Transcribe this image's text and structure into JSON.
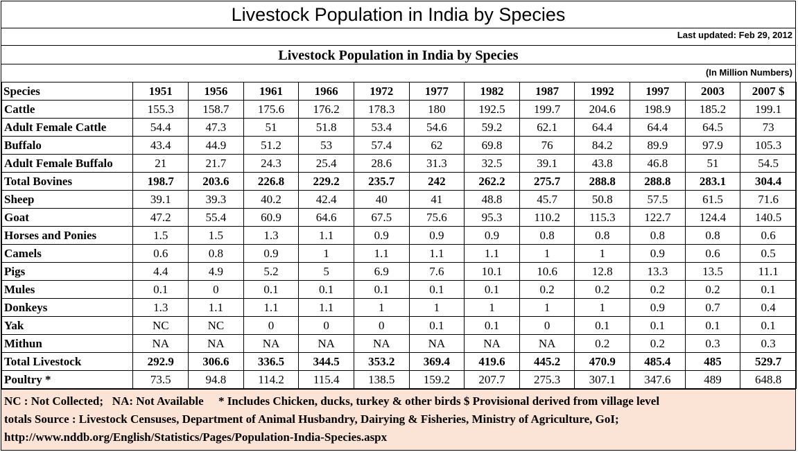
{
  "title": "Livestock Population in India by Species",
  "last_updated": "Last updated: Feb 29, 2012",
  "table_title": "Livestock Population in India by Species",
  "units": "(In Million Numbers)",
  "columns": [
    "Species",
    "1951",
    "1956",
    "1961",
    "1966",
    "1972",
    "1977",
    "1982",
    "1987",
    "1992",
    "1997",
    "2003",
    "2007 $"
  ],
  "rows": [
    {
      "species": "Cattle",
      "bold": false,
      "values": [
        "155.3",
        "158.7",
        "175.6",
        "176.2",
        "178.3",
        "180",
        "192.5",
        "199.7",
        "204.6",
        "198.9",
        "185.2",
        "199.1"
      ]
    },
    {
      "species": "Adult Female Cattle",
      "bold": false,
      "values": [
        "54.4",
        "47.3",
        "51",
        "51.8",
        "53.4",
        "54.6",
        "59.2",
        "62.1",
        "64.4",
        "64.4",
        "64.5",
        "73"
      ]
    },
    {
      "species": "Buffalo",
      "bold": false,
      "values": [
        "43.4",
        "44.9",
        "51.2",
        "53",
        "57.4",
        "62",
        "69.8",
        "76",
        "84.2",
        "89.9",
        "97.9",
        "105.3"
      ]
    },
    {
      "species": "Adult Female Buffalo",
      "bold": false,
      "values": [
        "21",
        "21.7",
        "24.3",
        "25.4",
        "28.6",
        "31.3",
        "32.5",
        "39.1",
        "43.8",
        "46.8",
        "51",
        "54.5"
      ]
    },
    {
      "species": "Total Bovines",
      "bold": true,
      "values": [
        "198.7",
        "203.6",
        "226.8",
        "229.2",
        "235.7",
        "242",
        "262.2",
        "275.7",
        "288.8",
        "288.8",
        "283.1",
        "304.4"
      ]
    },
    {
      "species": "Sheep",
      "bold": false,
      "values": [
        "39.1",
        "39.3",
        "40.2",
        "42.4",
        "40",
        "41",
        "48.8",
        "45.7",
        "50.8",
        "57.5",
        "61.5",
        "71.6"
      ]
    },
    {
      "species": "Goat",
      "bold": false,
      "values": [
        "47.2",
        "55.4",
        "60.9",
        "64.6",
        "67.5",
        "75.6",
        "95.3",
        "110.2",
        "115.3",
        "122.7",
        "124.4",
        "140.5"
      ]
    },
    {
      "species": "Horses and Ponies",
      "bold": false,
      "values": [
        "1.5",
        "1.5",
        "1.3",
        "1.1",
        "0.9",
        "0.9",
        "0.9",
        "0.8",
        "0.8",
        "0.8",
        "0.8",
        "0.6"
      ]
    },
    {
      "species": "Camels",
      "bold": false,
      "values": [
        "0.6",
        "0.8",
        "0.9",
        "1",
        "1.1",
        "1.1",
        "1.1",
        "1",
        "1",
        "0.9",
        "0.6",
        "0.5"
      ]
    },
    {
      "species": "Pigs",
      "bold": false,
      "values": [
        "4.4",
        "4.9",
        "5.2",
        "5",
        "6.9",
        "7.6",
        "10.1",
        "10.6",
        "12.8",
        "13.3",
        "13.5",
        "11.1"
      ]
    },
    {
      "species": "Mules",
      "bold": false,
      "values": [
        "0.1",
        "0",
        "0.1",
        "0.1",
        "0.1",
        "0.1",
        "0.1",
        "0.2",
        "0.2",
        "0.2",
        "0.2",
        "0.1"
      ]
    },
    {
      "species": "Donkeys",
      "bold": false,
      "values": [
        "1.3",
        "1.1",
        "1.1",
        "1.1",
        "1",
        "1",
        "1",
        "1",
        "1",
        "0.9",
        "0.7",
        "0.4"
      ]
    },
    {
      "species": "Yak",
      "bold": false,
      "values": [
        "NC",
        "NC",
        "0",
        "0",
        "0",
        "0.1",
        "0.1",
        "0",
        "0.1",
        "0.1",
        "0.1",
        "0.1"
      ]
    },
    {
      "species": "Mithun",
      "bold": false,
      "values": [
        "NA",
        "NA",
        "NA",
        "NA",
        "NA",
        "NA",
        "NA",
        "NA",
        "0.2",
        "0.2",
        "0.3",
        "0.3"
      ]
    },
    {
      "species": "Total Livestock",
      "bold": true,
      "values": [
        "292.9",
        "306.6",
        "336.5",
        "344.5",
        "353.2",
        "369.4",
        "419.6",
        "445.2",
        "470.9",
        "485.4",
        "485",
        "529.7"
      ]
    },
    {
      "species": "Poultry *",
      "bold": false,
      "values": [
        "73.5",
        "94.8",
        "114.2",
        "115.4",
        "138.5",
        "159.2",
        "207.7",
        "275.3",
        "307.1",
        "347.6",
        "489",
        "648.8"
      ]
    }
  ],
  "footer": {
    "line1": "NC : Not Collected;   NA: Not Available     * Includes Chicken, ducks, turkey & other birds $ Provisional derived from village level",
    "line2": "totals Source : Livestock Censuses, Department of Animal Husbandry, Dairying & Fisheries, Ministry of Agriculture, GoI;",
    "line3": "http://www.nddb.org/English/Statistics/Pages/Population-India-Species.aspx"
  },
  "colors": {
    "footer_bg": "#fbe4d5",
    "border": "#000000"
  }
}
